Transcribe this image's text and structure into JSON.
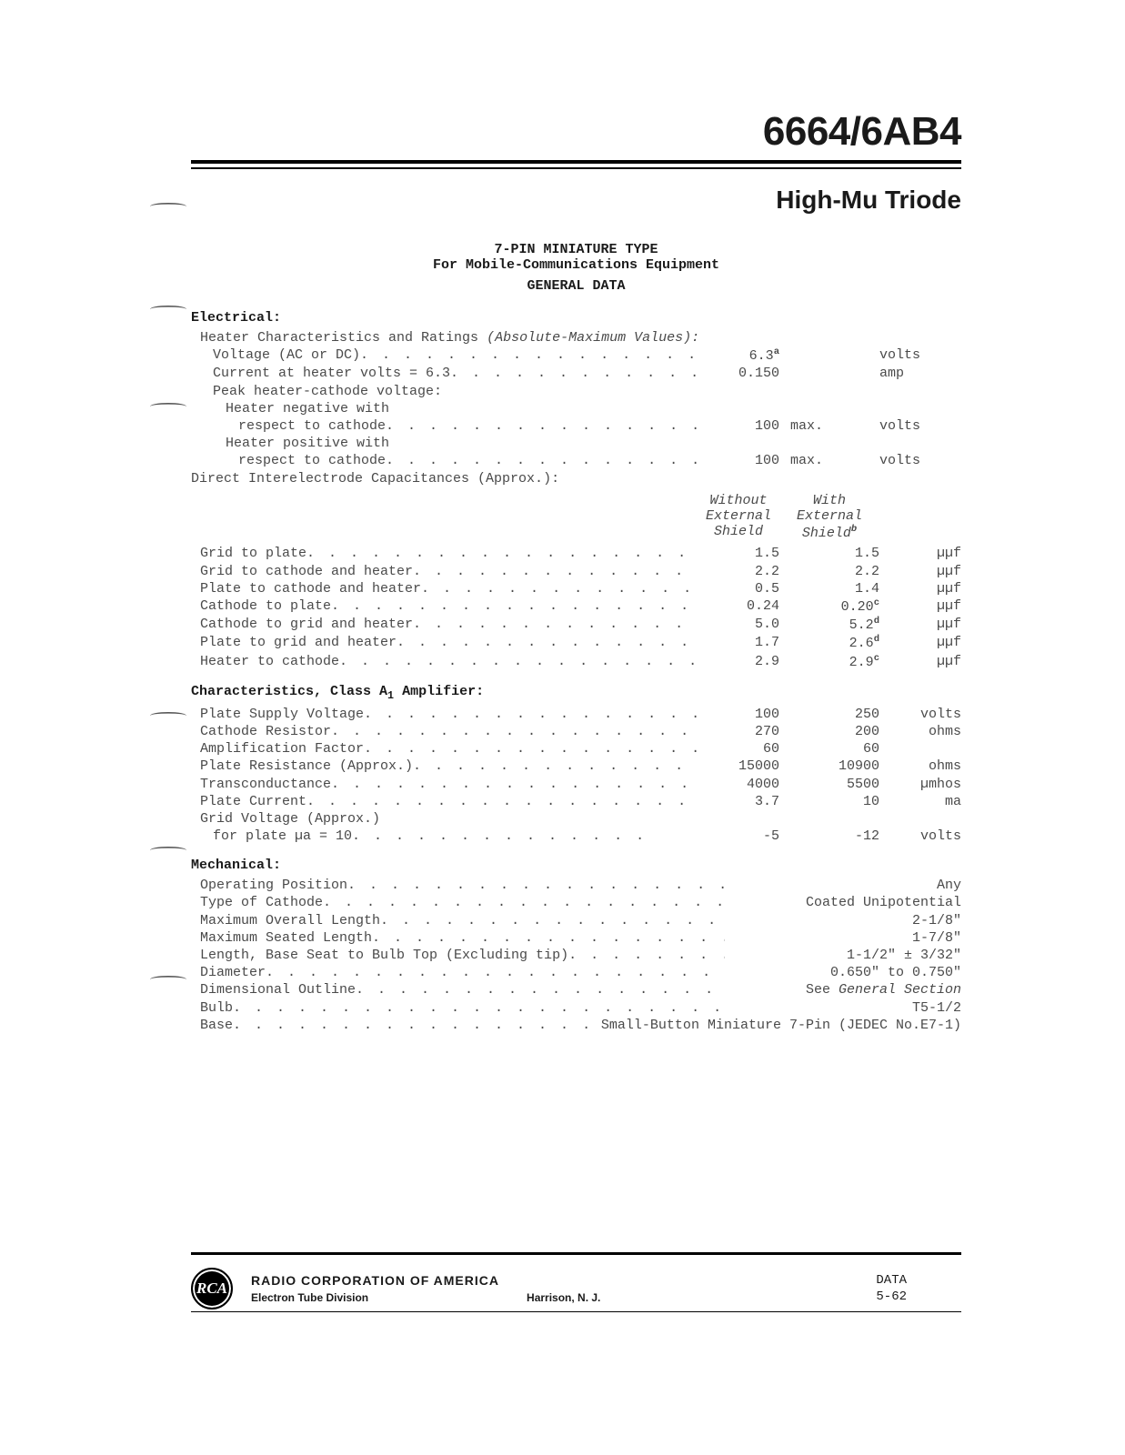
{
  "title": "6664/6AB4",
  "subtitle": "High-Mu Triode",
  "header": {
    "line1": "7-PIN MINIATURE TYPE",
    "line2": "For Mobile-Communications Equipment",
    "line3": "GENERAL DATA"
  },
  "electrical": {
    "heading": "Electrical:",
    "heater_intro": "Heater Characteristics and Ratings",
    "heater_intro_italic": "(Absolute-Maximum Values):",
    "rows": [
      {
        "label": "Voltage (AC or DC)",
        "v1": "6.3",
        "note": "a",
        "unit": "volts"
      },
      {
        "label": "Current at heater volts = 6.3",
        "v1": "0.150",
        "unit": "amp"
      }
    ],
    "peak_label": "Peak heater-cathode voltage:",
    "peak_neg1": "Heater negative with",
    "peak_neg2": "respect to cathode",
    "peak_neg_val": "100",
    "peak_neg_max": "max.",
    "peak_neg_unit": "volts",
    "peak_pos1": "Heater positive with",
    "peak_pos2": "respect to cathode",
    "peak_pos_val": "100",
    "peak_pos_max": "max.",
    "peak_pos_unit": "volts",
    "cap_intro": "Direct Interelectrode Capacitances (Approx.):",
    "cap_head1_l1": "Without",
    "cap_head1_l2": "External",
    "cap_head1_l3": "Shield",
    "cap_head2_l1": "With",
    "cap_head2_l2": "External",
    "cap_head2_l3": "Shield",
    "cap_head2_note": "b",
    "cap_rows": [
      {
        "label": "Grid to plate",
        "c1": "1.5",
        "c2": "1.5",
        "n2": "",
        "unit": "µµf"
      },
      {
        "label": "Grid to cathode and heater",
        "c1": "2.2",
        "c2": "2.2",
        "n2": "",
        "unit": "µµf"
      },
      {
        "label": "Plate to cathode and heater",
        "c1": "0.5",
        "c2": "1.4",
        "n2": "",
        "unit": "µµf"
      },
      {
        "label": "Cathode to plate",
        "c1": "0.24",
        "c2": "0.20",
        "n2": "c",
        "unit": "µµf"
      },
      {
        "label": "Cathode to grid and heater",
        "c1": "5.0",
        "c2": "5.2",
        "n2": "d",
        "unit": "µµf"
      },
      {
        "label": "Plate to grid and heater",
        "c1": "1.7",
        "c2": "2.6",
        "n2": "d",
        "unit": "µµf"
      },
      {
        "label": "Heater to cathode",
        "c1": "2.9",
        "c2": "2.9",
        "n2": "c",
        "unit": "µµf"
      }
    ],
    "classA_heading": "Characteristics, Class A",
    "classA_sub": "1",
    "classA_heading2": " Amplifier:",
    "classA_rows": [
      {
        "label": "Plate Supply Voltage",
        "c1": "100",
        "c2": "250",
        "unit": "volts"
      },
      {
        "label": "Cathode Resistor",
        "c1": "270",
        "c2": "200",
        "unit": "ohms"
      },
      {
        "label": "Amplification Factor",
        "c1": "60",
        "c2": "60",
        "unit": ""
      },
      {
        "label": "Plate Resistance (Approx.)",
        "c1": "15000",
        "c2": "10900",
        "unit": "ohms"
      },
      {
        "label": "Transconductance",
        "c1": "4000",
        "c2": "5500",
        "unit": "µmhos"
      },
      {
        "label": "Plate Current",
        "c1": "3.7",
        "c2": "10",
        "unit": "ma"
      }
    ],
    "grid_v_label1": "Grid Voltage (Approx.)",
    "grid_v_label2": "for plate µa = 10",
    "grid_v_c1": "-5",
    "grid_v_c2": "-12",
    "grid_v_unit": "volts"
  },
  "mechanical": {
    "heading": "Mechanical:",
    "rows": [
      {
        "label": "Operating Position",
        "val": "Any"
      },
      {
        "label": "Type of Cathode",
        "val": "Coated Unipotential"
      },
      {
        "label": "Maximum Overall Length",
        "val": "2-1/8\""
      },
      {
        "label": "Maximum Seated Length",
        "val": "1-7/8\""
      },
      {
        "label": "Length, Base Seat to Bulb Top (Excluding tip)",
        "val": "1-1/2\" ± 3/32\""
      },
      {
        "label": "Diameter",
        "val": "0.650\" to 0.750\""
      },
      {
        "label": "Dimensional Outline",
        "val": "See General Section",
        "italic": true
      },
      {
        "label": "Bulb",
        "val": "T5-1/2"
      },
      {
        "label": "Base",
        "val": "Small-Button Miniature 7-Pin (JEDEC No.E7-1)"
      }
    ]
  },
  "footer": {
    "corp": "RADIO CORPORATION OF AMERICA",
    "div": "Electron Tube Division",
    "loc": "Harrison, N. J.",
    "r1": "DATA",
    "r2": "5-62",
    "logo": "RCA"
  }
}
